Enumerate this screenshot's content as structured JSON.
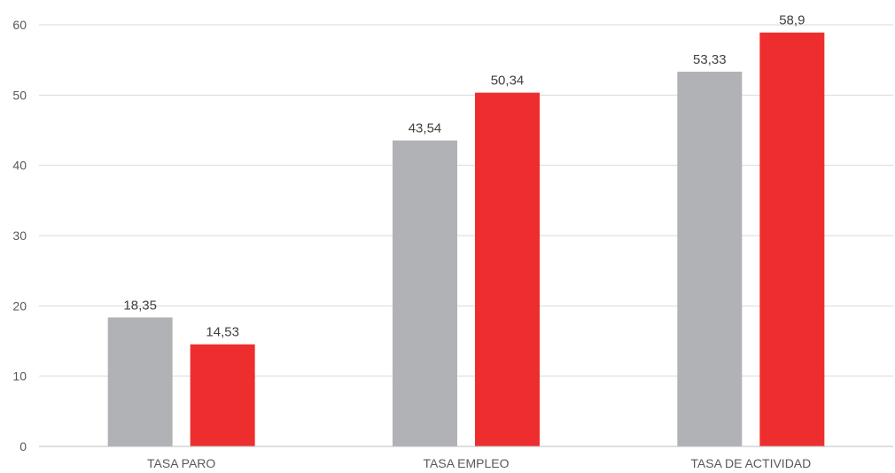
{
  "chart_data": {
    "type": "bar",
    "title": "",
    "xlabel": "",
    "ylabel": "",
    "categories": [
      "TASA PARO",
      "TASA EMPLEO",
      "TASA DE ACTIVIDAD"
    ],
    "series": [
      {
        "color": "#b1b2b6",
        "values": [
          18.35,
          43.54,
          53.33
        ],
        "labels": [
          "18,35",
          "43,54",
          "53,33"
        ]
      },
      {
        "color": "#ee2e2e",
        "values": [
          14.53,
          50.34,
          58.9
        ],
        "labels": [
          "14,53",
          "50,34",
          "58,9"
        ]
      }
    ],
    "ylim": [
      0,
      60
    ],
    "yticks": [
      0,
      10,
      20,
      30,
      40,
      50,
      60
    ],
    "ytick_labels": [
      "0",
      "10",
      "20",
      "30",
      "40",
      "50",
      "60"
    ],
    "grid": true,
    "legend": "none"
  }
}
